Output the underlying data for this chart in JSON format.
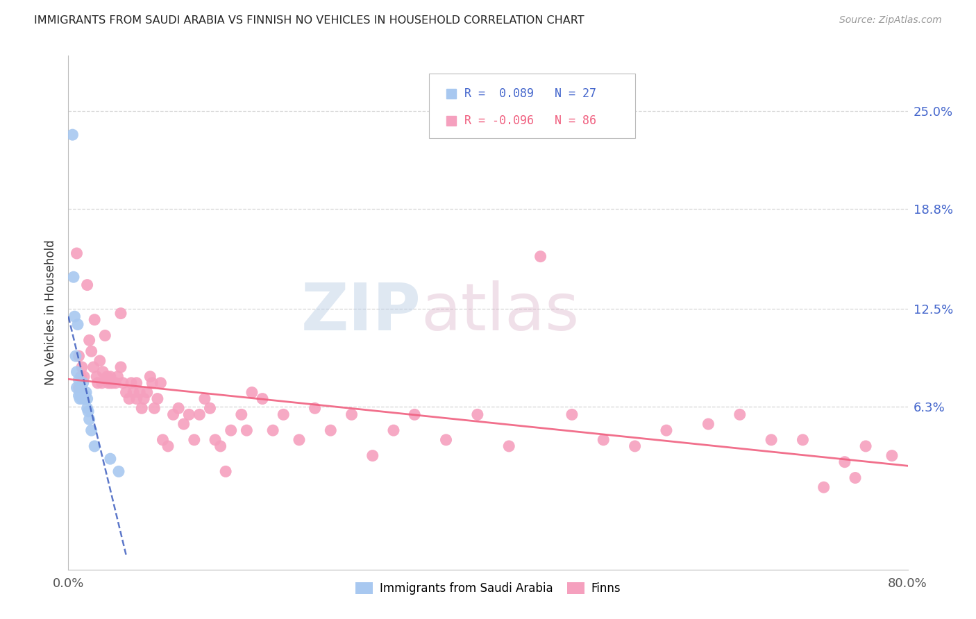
{
  "title": "IMMIGRANTS FROM SAUDI ARABIA VS FINNISH NO VEHICLES IN HOUSEHOLD CORRELATION CHART",
  "source": "Source: ZipAtlas.com",
  "ylabel": "No Vehicles in Household",
  "right_yticks": [
    "25.0%",
    "18.8%",
    "12.5%",
    "6.3%"
  ],
  "right_ytick_vals": [
    0.25,
    0.188,
    0.125,
    0.063
  ],
  "xmin": 0.0,
  "xmax": 0.8,
  "ymin": -0.04,
  "ymax": 0.285,
  "watermark_zip": "ZIP",
  "watermark_atlas": "atlas",
  "saudi_color": "#a8c8f0",
  "finn_color": "#f5a0be",
  "saudi_line_color": "#4060c0",
  "finn_line_color": "#f06080",
  "background_color": "#ffffff",
  "grid_color": "#cccccc",
  "title_color": "#222222",
  "right_axis_color": "#4466cc",
  "saudi_scatter_x": [
    0.004,
    0.005,
    0.006,
    0.007,
    0.008,
    0.008,
    0.009,
    0.01,
    0.01,
    0.011,
    0.011,
    0.012,
    0.012,
    0.013,
    0.013,
    0.014,
    0.015,
    0.016,
    0.017,
    0.018,
    0.018,
    0.019,
    0.02,
    0.022,
    0.025,
    0.04,
    0.048
  ],
  "saudi_scatter_y": [
    0.235,
    0.145,
    0.12,
    0.095,
    0.085,
    0.075,
    0.115,
    0.08,
    0.07,
    0.072,
    0.068,
    0.075,
    0.07,
    0.072,
    0.068,
    0.078,
    0.068,
    0.07,
    0.072,
    0.068,
    0.062,
    0.06,
    0.055,
    0.048,
    0.038,
    0.03,
    0.022
  ],
  "finn_scatter_x": [
    0.008,
    0.01,
    0.01,
    0.012,
    0.013,
    0.015,
    0.018,
    0.02,
    0.022,
    0.024,
    0.025,
    0.027,
    0.028,
    0.03,
    0.032,
    0.033,
    0.035,
    0.037,
    0.038,
    0.04,
    0.04,
    0.042,
    0.045,
    0.047,
    0.05,
    0.05,
    0.052,
    0.055,
    0.058,
    0.06,
    0.062,
    0.065,
    0.065,
    0.068,
    0.07,
    0.072,
    0.075,
    0.078,
    0.08,
    0.082,
    0.085,
    0.088,
    0.09,
    0.095,
    0.1,
    0.105,
    0.11,
    0.115,
    0.12,
    0.125,
    0.13,
    0.135,
    0.14,
    0.145,
    0.15,
    0.155,
    0.165,
    0.17,
    0.175,
    0.185,
    0.195,
    0.205,
    0.22,
    0.235,
    0.25,
    0.27,
    0.29,
    0.31,
    0.33,
    0.36,
    0.39,
    0.42,
    0.45,
    0.48,
    0.51,
    0.54,
    0.57,
    0.61,
    0.64,
    0.67,
    0.7,
    0.74,
    0.76,
    0.785,
    0.75,
    0.72
  ],
  "finn_scatter_y": [
    0.16,
    0.095,
    0.075,
    0.082,
    0.088,
    0.082,
    0.14,
    0.105,
    0.098,
    0.088,
    0.118,
    0.082,
    0.078,
    0.092,
    0.078,
    0.085,
    0.108,
    0.082,
    0.078,
    0.082,
    0.078,
    0.078,
    0.078,
    0.082,
    0.122,
    0.088,
    0.078,
    0.072,
    0.068,
    0.078,
    0.072,
    0.068,
    0.078,
    0.072,
    0.062,
    0.068,
    0.072,
    0.082,
    0.078,
    0.062,
    0.068,
    0.078,
    0.042,
    0.038,
    0.058,
    0.062,
    0.052,
    0.058,
    0.042,
    0.058,
    0.068,
    0.062,
    0.042,
    0.038,
    0.022,
    0.048,
    0.058,
    0.048,
    0.072,
    0.068,
    0.048,
    0.058,
    0.042,
    0.062,
    0.048,
    0.058,
    0.032,
    0.048,
    0.058,
    0.042,
    0.058,
    0.038,
    0.158,
    0.058,
    0.042,
    0.038,
    0.048,
    0.052,
    0.058,
    0.042,
    0.042,
    0.028,
    0.038,
    0.032,
    0.018,
    0.012
  ]
}
